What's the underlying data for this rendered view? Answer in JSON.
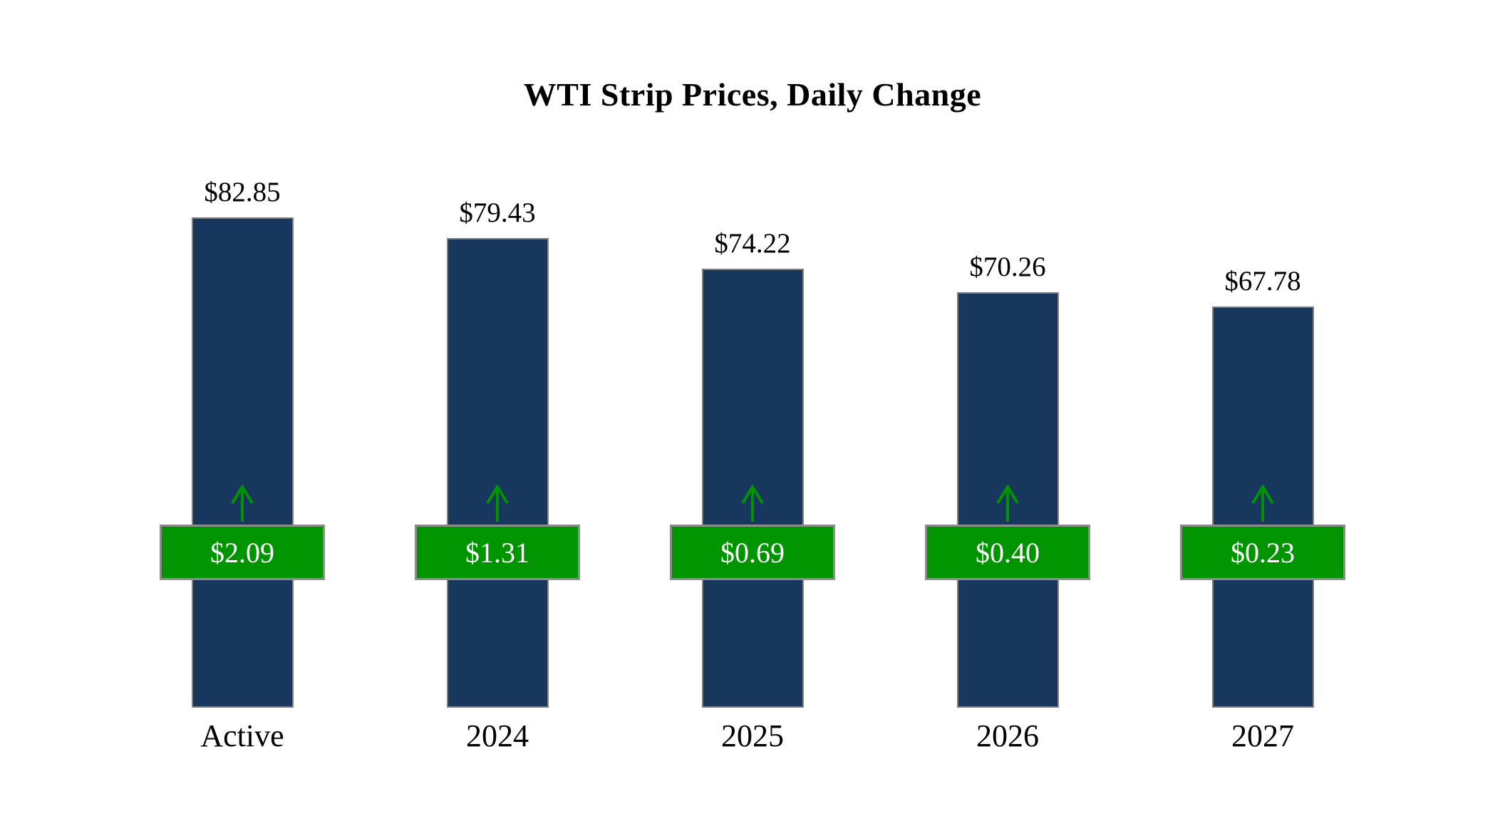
{
  "chart_data": {
    "type": "bar",
    "title": "WTI Strip Prices, Daily Change",
    "categories": [
      "Active",
      "2024",
      "2025",
      "2026",
      "2027"
    ],
    "series": [
      {
        "name": "WTI Strip Price",
        "values": [
          82.85,
          79.43,
          74.22,
          70.26,
          67.78
        ],
        "labels": [
          "$82.85",
          "$79.43",
          "$74.22",
          "$70.26",
          "$67.78"
        ]
      },
      {
        "name": "Daily Change",
        "values": [
          2.09,
          1.31,
          0.69,
          0.4,
          0.23
        ],
        "labels": [
          "$2.09",
          "$1.31",
          "$0.69",
          "$0.40",
          "$0.23"
        ]
      }
    ],
    "ylim": [
      0,
      90
    ],
    "grid": false,
    "legend": "none",
    "arrow_direction": "up",
    "colors": {
      "bar": "#17375e",
      "change_badge": "#009400",
      "badge_border": "#8c8c8c",
      "badge_text": "#ffffff",
      "arrow": "#009400",
      "label_text": "#000000"
    }
  }
}
